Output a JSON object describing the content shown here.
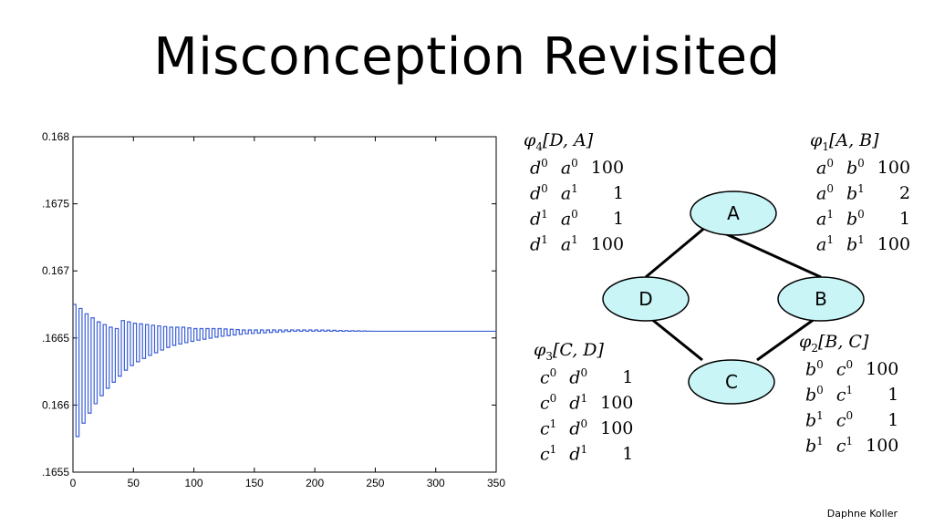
{
  "title": "Misconception Revisited",
  "author": "Daphne Koller",
  "chart_data": {
    "type": "line",
    "x_ticks": [
      "0",
      "50",
      "100",
      "150",
      "200",
      "250",
      "300",
      "350"
    ],
    "y_ticks": [
      ".1655",
      "0.166",
      ".1665",
      "0.167",
      ".1675",
      "0.168"
    ],
    "xlim": [
      0,
      350
    ],
    "ylim": [
      0.1655,
      0.168
    ],
    "grid": false,
    "series_color": "#3b5fd6",
    "series": [
      {
        "description": "damped oscillation converging to ~0.16655",
        "x": [
          0,
          5,
          10,
          15,
          20,
          25,
          30,
          35,
          40,
          45,
          50,
          60,
          70,
          80,
          90,
          100,
          120,
          140,
          160,
          180,
          200,
          250,
          290,
          350
        ],
        "upper_envelope": [
          0.16675,
          0.16672,
          0.16668,
          0.16665,
          0.16662,
          0.1666,
          0.16658,
          0.16657,
          0.16663,
          0.16662,
          0.16661,
          0.1666,
          0.16659,
          0.16658,
          0.16658,
          0.16657,
          0.16657,
          0.16656,
          0.16656,
          0.16656,
          0.16656,
          0.16655,
          0.16655,
          0.16655
        ],
        "lower_envelope": [
          0.1657,
          0.16583,
          0.1659,
          0.16598,
          0.16604,
          0.1661,
          0.16615,
          0.16619,
          0.16624,
          0.16628,
          0.16631,
          0.16636,
          0.1664,
          0.16644,
          0.16646,
          0.16648,
          0.16651,
          0.16653,
          0.16654,
          0.16655,
          0.16655,
          0.16655,
          0.16655,
          0.16655
        ]
      }
    ]
  },
  "graph": {
    "nodes": [
      "A",
      "B",
      "C",
      "D"
    ],
    "edges": [
      [
        "A",
        "B"
      ],
      [
        "B",
        "C"
      ],
      [
        "C",
        "D"
      ],
      [
        "D",
        "A"
      ]
    ],
    "node_fill": "#c9f5f7"
  },
  "factors": {
    "phi4": {
      "name_sym": "φ",
      "name_sub": "4",
      "name_args": "[D, A]",
      "rows": [
        {
          "v1": "d",
          "s1": "0",
          "v2": "a",
          "s2": "0",
          "val": "100"
        },
        {
          "v1": "d",
          "s1": "0",
          "v2": "a",
          "s2": "1",
          "val": "1"
        },
        {
          "v1": "d",
          "s1": "1",
          "v2": "a",
          "s2": "0",
          "val": "1"
        },
        {
          "v1": "d",
          "s1": "1",
          "v2": "a",
          "s2": "1",
          "val": "100"
        }
      ]
    },
    "phi1": {
      "name_sym": "φ",
      "name_sub": "1",
      "name_args": "[A, B]",
      "rows": [
        {
          "v1": "a",
          "s1": "0",
          "v2": "b",
          "s2": "0",
          "val": "100"
        },
        {
          "v1": "a",
          "s1": "0",
          "v2": "b",
          "s2": "1",
          "val": "2"
        },
        {
          "v1": "a",
          "s1": "1",
          "v2": "b",
          "s2": "0",
          "val": "1"
        },
        {
          "v1": "a",
          "s1": "1",
          "v2": "b",
          "s2": "1",
          "val": "100"
        }
      ]
    },
    "phi3": {
      "name_sym": "φ",
      "name_sub": "3",
      "name_args": "[C, D]",
      "rows": [
        {
          "v1": "c",
          "s1": "0",
          "v2": "d",
          "s2": "0",
          "val": "1"
        },
        {
          "v1": "c",
          "s1": "0",
          "v2": "d",
          "s2": "1",
          "val": "100"
        },
        {
          "v1": "c",
          "s1": "1",
          "v2": "d",
          "s2": "0",
          "val": "100"
        },
        {
          "v1": "c",
          "s1": "1",
          "v2": "d",
          "s2": "1",
          "val": "1"
        }
      ]
    },
    "phi2": {
      "name_sym": "φ",
      "name_sub": "2",
      "name_args": "[B, C]",
      "rows": [
        {
          "v1": "b",
          "s1": "0",
          "v2": "c",
          "s2": "0",
          "val": "100"
        },
        {
          "v1": "b",
          "s1": "0",
          "v2": "c",
          "s2": "1",
          "val": "1"
        },
        {
          "v1": "b",
          "s1": "1",
          "v2": "c",
          "s2": "0",
          "val": "1"
        },
        {
          "v1": "b",
          "s1": "1",
          "v2": "c",
          "s2": "1",
          "val": "100"
        }
      ]
    }
  }
}
